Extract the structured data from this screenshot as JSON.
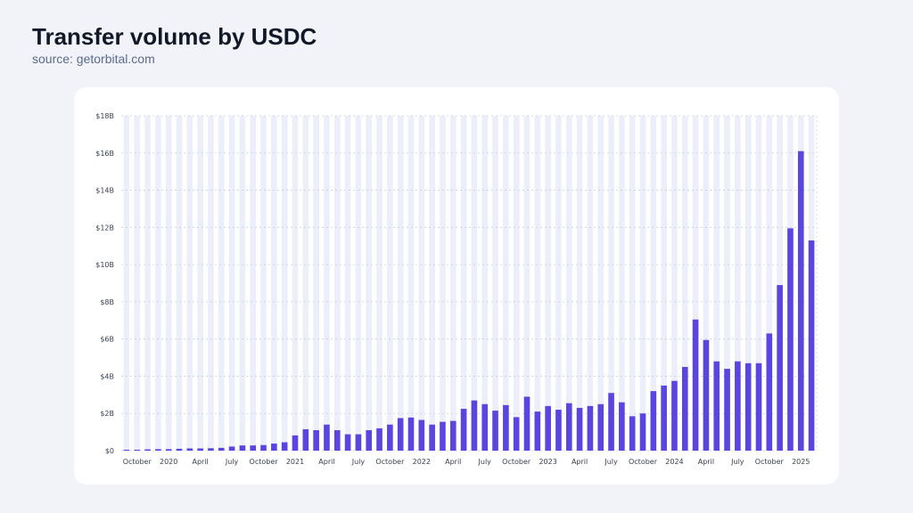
{
  "header": {
    "title": "Transfer volume by USDC",
    "subtitle": "source: getorbital.com"
  },
  "colors": {
    "bar": "#5b45e0",
    "band": "#eceef9",
    "grid": "#c9cfe0",
    "background": "#f1f3f8",
    "card": "#ffffff"
  },
  "chart_data": {
    "type": "bar",
    "title": "Transfer volume by USDC",
    "xlabel": "",
    "ylabel": "",
    "ylim": [
      0,
      18
    ],
    "y_unit": "B",
    "y_ticks": [
      "$0",
      "$2B",
      "$4B",
      "$6B",
      "$8B",
      "$10B",
      "$12B",
      "$14B",
      "$16B",
      "$18B"
    ],
    "grid": true,
    "legend": "none",
    "x_tick_labels": [
      {
        "index": 1,
        "label": "October"
      },
      {
        "index": 4,
        "label": "2020"
      },
      {
        "index": 7,
        "label": "April"
      },
      {
        "index": 10,
        "label": "July"
      },
      {
        "index": 13,
        "label": "October"
      },
      {
        "index": 16,
        "label": "2021"
      },
      {
        "index": 19,
        "label": "April"
      },
      {
        "index": 22,
        "label": "July"
      },
      {
        "index": 25,
        "label": "October"
      },
      {
        "index": 28,
        "label": "2022"
      },
      {
        "index": 31,
        "label": "April"
      },
      {
        "index": 34,
        "label": "July"
      },
      {
        "index": 37,
        "label": "October"
      },
      {
        "index": 40,
        "label": "2023"
      },
      {
        "index": 43,
        "label": "April"
      },
      {
        "index": 46,
        "label": "July"
      },
      {
        "index": 49,
        "label": "October"
      },
      {
        "index": 52,
        "label": "2024"
      },
      {
        "index": 55,
        "label": "April"
      },
      {
        "index": 58,
        "label": "July"
      },
      {
        "index": 61,
        "label": "October"
      },
      {
        "index": 64,
        "label": "2025"
      }
    ],
    "values": [
      0.05,
      0.05,
      0.07,
      0.08,
      0.08,
      0.1,
      0.12,
      0.12,
      0.13,
      0.15,
      0.22,
      0.28,
      0.28,
      0.3,
      0.38,
      0.45,
      0.82,
      1.15,
      1.1,
      1.4,
      1.1,
      0.88,
      0.88,
      1.1,
      1.2,
      1.4,
      1.75,
      1.78,
      1.65,
      1.4,
      1.55,
      1.6,
      2.25,
      2.7,
      2.5,
      2.15,
      2.45,
      1.8,
      2.9,
      2.1,
      2.4,
      2.2,
      2.55,
      2.3,
      2.4,
      2.5,
      3.1,
      2.6,
      1.85,
      2.0,
      3.2,
      3.5,
      3.75,
      4.5,
      7.05,
      5.95,
      4.8,
      4.4,
      4.8,
      4.7,
      4.7,
      6.3,
      8.9,
      11.95,
      16.1,
      11.3
    ]
  }
}
